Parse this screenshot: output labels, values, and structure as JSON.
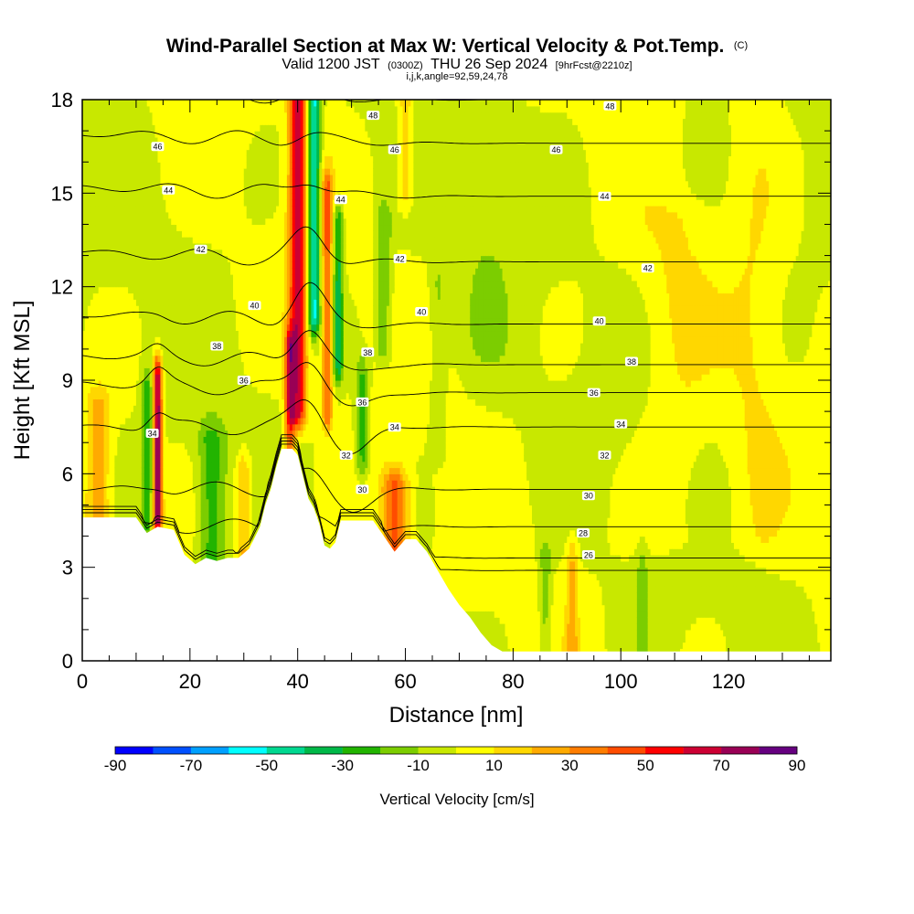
{
  "header": {
    "title": "Wind-Parallel Section at Max W: Vertical Velocity & Pot.Temp.",
    "title_mark": "(C)",
    "valid_prefix": "Valid 1200 JST",
    "valid_utc": "(0300Z)",
    "valid_date": "THU 26 Sep 2024",
    "forecast": "[9hrFcst@2210z]",
    "params": "i,j,k,angle=92,59,24,78"
  },
  "chart_data": {
    "type": "heatmap",
    "xlabel": "Distance [nm]",
    "ylabel": "Height [Kft MSL]",
    "xlim": [
      0,
      139
    ],
    "ylim": [
      0,
      18
    ],
    "x_ticks": [
      0,
      20,
      40,
      60,
      80,
      100,
      120
    ],
    "y_ticks": [
      0,
      3,
      6,
      9,
      12,
      15,
      18
    ],
    "grid": false,
    "terrain": {
      "x": [
        0,
        5,
        10,
        12,
        14,
        17,
        19,
        21,
        23,
        25,
        27,
        29,
        31,
        33,
        34,
        35,
        36,
        37,
        39,
        40,
        41,
        42,
        43,
        44,
        45,
        46,
        47,
        48,
        50,
        52,
        54,
        56,
        58,
        60,
        62,
        64,
        66,
        68,
        70,
        72,
        74,
        76,
        78,
        80,
        139
      ],
      "height": [
        4.6,
        4.6,
        4.6,
        4.1,
        4.3,
        4.2,
        3.4,
        3.1,
        3.3,
        3.2,
        3.3,
        3.3,
        3.6,
        4.3,
        5.0,
        5.5,
        6.2,
        6.8,
        6.8,
        6.6,
        5.9,
        5.2,
        4.9,
        4.4,
        3.7,
        3.6,
        3.8,
        4.5,
        4.5,
        4.5,
        4.5,
        4.0,
        3.5,
        3.9,
        3.9,
        3.5,
        2.9,
        2.3,
        1.8,
        1.4,
        0.9,
        0.5,
        0.3,
        0.3,
        0.3
      ]
    },
    "theta_levels": [
      26,
      28,
      30,
      32,
      34,
      36,
      38,
      40,
      42,
      44,
      46,
      48
    ],
    "theta_base_heights": [
      2.9,
      3.3,
      4.3,
      5.5,
      7.5,
      8.6,
      9.5,
      10.8,
      12.8,
      14.9,
      16.6,
      18.0
    ],
    "theta_label_positions": [
      {
        "label": "26",
        "x": 94,
        "y": 3.4
      },
      {
        "label": "28",
        "x": 93,
        "y": 4.1
      },
      {
        "label": "30",
        "x": 94,
        "y": 5.3
      },
      {
        "label": "32",
        "x": 97,
        "y": 6.6
      },
      {
        "label": "34",
        "x": 100,
        "y": 7.6
      },
      {
        "label": "36",
        "x": 95,
        "y": 8.6
      },
      {
        "label": "38",
        "x": 102,
        "y": 9.6
      },
      {
        "label": "40",
        "x": 96,
        "y": 10.9
      },
      {
        "label": "42",
        "x": 105,
        "y": 12.6
      },
      {
        "label": "44",
        "x": 97,
        "y": 14.9
      },
      {
        "label": "46",
        "x": 88,
        "y": 16.4
      },
      {
        "label": "48",
        "x": 98,
        "y": 17.8
      },
      {
        "label": "34",
        "x": 13,
        "y": 7.3
      },
      {
        "label": "36",
        "x": 30,
        "y": 9.0
      },
      {
        "label": "38",
        "x": 25,
        "y": 10.1
      },
      {
        "label": "40",
        "x": 32,
        "y": 11.4
      },
      {
        "label": "42",
        "x": 22,
        "y": 13.2
      },
      {
        "label": "44",
        "x": 16,
        "y": 15.1
      },
      {
        "label": "46",
        "x": 14,
        "y": 16.5
      },
      {
        "label": "30",
        "x": 52,
        "y": 5.5
      },
      {
        "label": "32",
        "x": 49,
        "y": 6.6
      },
      {
        "label": "34",
        "x": 58,
        "y": 7.5
      },
      {
        "label": "36",
        "x": 52,
        "y": 8.3
      },
      {
        "label": "38",
        "x": 53,
        "y": 9.9
      },
      {
        "label": "40",
        "x": 63,
        "y": 11.2
      },
      {
        "label": "42",
        "x": 59,
        "y": 12.9
      },
      {
        "label": "44",
        "x": 48,
        "y": 14.8
      },
      {
        "label": "46",
        "x": 58,
        "y": 16.4
      },
      {
        "label": "48",
        "x": 54,
        "y": 17.5
      }
    ],
    "vertical_velocity_features": [
      {
        "x": 40,
        "halfwidth": 1.6,
        "y0": 8.0,
        "y1": 18.0,
        "w": 65
      },
      {
        "x": 43,
        "halfwidth": 1.2,
        "y0": 11.0,
        "y1": 18.0,
        "w": -55
      },
      {
        "x": 38.5,
        "halfwidth": 0.9,
        "y0": 6.8,
        "y1": 10.0,
        "w": 45
      },
      {
        "x": 45.5,
        "halfwidth": 1.0,
        "y0": 8.0,
        "y1": 15.0,
        "w": 40
      },
      {
        "x": 47.5,
        "halfwidth": 1.0,
        "y0": 9.5,
        "y1": 14.0,
        "w": -35
      },
      {
        "x": 14,
        "halfwidth": 0.8,
        "y0": 4.6,
        "y1": 9.0,
        "w": 80
      },
      {
        "x": 12,
        "halfwidth": 1.0,
        "y0": 4.6,
        "y1": 8.5,
        "w": -30
      },
      {
        "x": 58,
        "halfwidth": 2.5,
        "y0": 3.6,
        "y1": 5.5,
        "w": 45
      },
      {
        "x": 52,
        "halfwidth": 1.2,
        "y0": 6.5,
        "y1": 9.0,
        "w": -25
      },
      {
        "x": 56,
        "halfwidth": 1.5,
        "y0": 10.0,
        "y1": 14.0,
        "w": -20
      },
      {
        "x": 24,
        "halfwidth": 2.5,
        "y0": 3.2,
        "y1": 7.0,
        "w": -25
      },
      {
        "x": 30,
        "halfwidth": 1.5,
        "y0": 3.5,
        "y1": 6.0,
        "w": 25
      },
      {
        "x": 86,
        "halfwidth": 1.2,
        "y0": 0.3,
        "y1": 3.2,
        "w": -18
      },
      {
        "x": 91,
        "halfwidth": 1.0,
        "y0": 0.3,
        "y1": 3.2,
        "w": 22
      },
      {
        "x": 104,
        "halfwidth": 1.0,
        "y0": 0.3,
        "y1": 3.0,
        "w": -15
      },
      {
        "x": 60,
        "halfwidth": 1.5,
        "y0": 15.0,
        "y1": 18.0,
        "w": 20
      },
      {
        "x": 3,
        "halfwidth": 2.0,
        "y0": 4.6,
        "y1": 8.0,
        "w": 25
      },
      {
        "x": 66,
        "halfwidth": 1.5,
        "y0": 7.0,
        "y1": 12.0,
        "w": -12
      },
      {
        "x": 110,
        "halfwidth": 6.0,
        "y0": 4.0,
        "y1": 14.0,
        "w": 8
      },
      {
        "x": 125,
        "halfwidth": 5.0,
        "y0": 4.0,
        "y1": 18.0,
        "w": 8
      },
      {
        "x": 75,
        "halfwidth": 5.0,
        "y0": 10.0,
        "y1": 18.0,
        "w": -6
      }
    ]
  },
  "colorbar": {
    "label": "Vertical Velocity [cm/s]",
    "min": -90,
    "max": 90,
    "step": 10,
    "tick_labels": [
      "-90",
      "-70",
      "-50",
      "-30",
      "-10",
      "10",
      "30",
      "50",
      "70",
      "90"
    ],
    "colors": [
      "#0000ff",
      "#0050ff",
      "#00a0ff",
      "#00ffff",
      "#00d890",
      "#00b848",
      "#22b400",
      "#7ccd00",
      "#c8e800",
      "#ffff00",
      "#ffd700",
      "#ffaa00",
      "#ff7d00",
      "#ff4c00",
      "#ff0000",
      "#cc0033",
      "#990055",
      "#660080"
    ]
  }
}
